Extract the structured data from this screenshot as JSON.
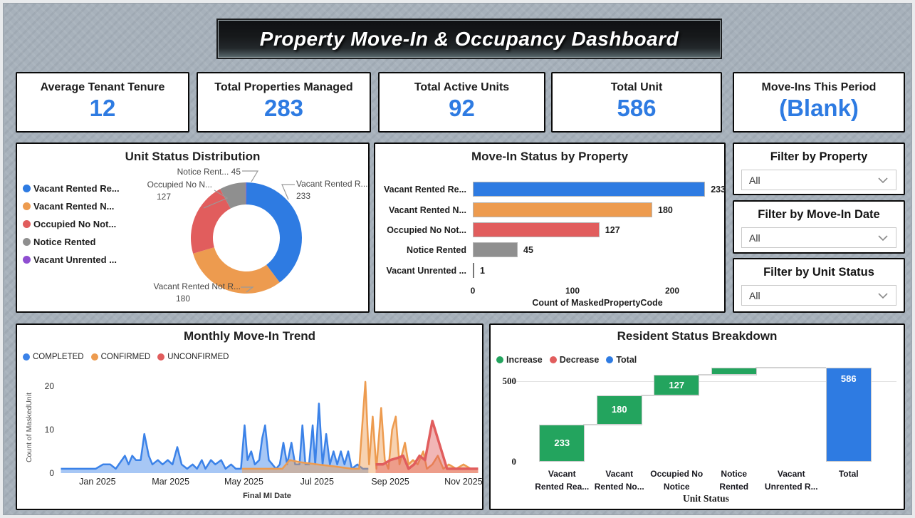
{
  "title": "Property Move-In & Occupancy Dashboard",
  "kpis": [
    {
      "label": "Average Tenant Tenure",
      "value": "12"
    },
    {
      "label": "Total Properties Managed",
      "value": "283"
    },
    {
      "label": "Total Active Units",
      "value": "92"
    },
    {
      "label": "Total Unit",
      "value": "586"
    },
    {
      "label": "Move-Ins This Period",
      "value": "(Blank)"
    }
  ],
  "filters": [
    {
      "title": "Filter by Property",
      "value": "All"
    },
    {
      "title": "Filter by Move-In Date",
      "value": "All"
    },
    {
      "title": "Filter by Unit Status",
      "value": "All"
    }
  ],
  "colors": {
    "blue": "#2e7be2",
    "orange": "#ed9b4f",
    "red": "#e15d5d",
    "gray": "#8f8f8f",
    "purple": "#8f4fd1",
    "green": "#23a45e",
    "kpi_value": "#2e7be2"
  },
  "chart_data": [
    {
      "type": "pie",
      "title": "Unit Status Distribution",
      "legend": [
        {
          "label": "Vacant Rented Re...",
          "color": "#2e7be2"
        },
        {
          "label": "Vacant Rented N...",
          "color": "#ed9b4f"
        },
        {
          "label": "Occupied No Not...",
          "color": "#e15d5d"
        },
        {
          "label": "Notice Rented",
          "color": "#8f8f8f"
        },
        {
          "label": "Vacant Unrented ...",
          "color": "#8f4fd1"
        }
      ],
      "values": [
        233,
        180,
        127,
        45,
        1
      ],
      "callouts": {
        "top": {
          "line1": "Notice Rent...  45"
        },
        "left": {
          "line1": "Occupied No N...",
          "line2": "127"
        },
        "right": {
          "line1": "Vacant Rented R...",
          "line2": "233"
        },
        "bottom": {
          "line1": "Vacant Rented Not R...",
          "line2": "180"
        }
      }
    },
    {
      "type": "bar",
      "title": "Move-In Status by Property",
      "categories": [
        "Vacant Rented Re...",
        "Vacant Rented N...",
        "Occupied No Not...",
        "Notice Rented",
        "Vacant Unrented ..."
      ],
      "values": [
        233,
        180,
        127,
        45,
        1
      ],
      "bar_colors": [
        "#2e7be2",
        "#ed9b4f",
        "#e15d5d",
        "#8f8f8f",
        "#777777"
      ],
      "xlabel": "Count of MaskedPropertyCode",
      "xticks": [
        0,
        100,
        200
      ],
      "xlim": [
        0,
        250
      ]
    },
    {
      "type": "area",
      "title": "Monthly Move-In Trend",
      "xlabel": "Final MI Date",
      "ylabel": "Count of MaskedUnit",
      "yticks": [
        0,
        10,
        20
      ],
      "ylim": [
        0,
        22
      ],
      "xlim": [
        0,
        11.5
      ],
      "xticks": [
        {
          "t": 1,
          "label": "Jan 2025"
        },
        {
          "t": 3,
          "label": "Mar 2025"
        },
        {
          "t": 5,
          "label": "May 2025"
        },
        {
          "t": 7,
          "label": "Jul 2025"
        },
        {
          "t": 9,
          "label": "Sep 2025"
        },
        {
          "t": 11,
          "label": "Nov 2025"
        }
      ],
      "series": [
        {
          "name": "COMPLETED",
          "color": "#3b82e8",
          "points": [
            [
              0,
              1
            ],
            [
              0.6,
              1
            ],
            [
              0.95,
              1
            ],
            [
              1.15,
              2
            ],
            [
              1.35,
              2
            ],
            [
              1.5,
              1
            ],
            [
              1.75,
              4
            ],
            [
              1.85,
              2
            ],
            [
              1.95,
              4
            ],
            [
              2.05,
              3
            ],
            [
              2.18,
              3
            ],
            [
              2.28,
              9
            ],
            [
              2.4,
              4
            ],
            [
              2.5,
              2
            ],
            [
              2.65,
              3
            ],
            [
              2.78,
              2
            ],
            [
              2.92,
              3
            ],
            [
              3.05,
              2
            ],
            [
              3.18,
              6
            ],
            [
              3.3,
              2
            ],
            [
              3.45,
              1
            ],
            [
              3.6,
              2
            ],
            [
              3.72,
              1
            ],
            [
              3.85,
              3
            ],
            [
              3.95,
              1
            ],
            [
              4.1,
              3
            ],
            [
              4.22,
              2
            ],
            [
              4.38,
              3
            ],
            [
              4.5,
              1
            ],
            [
              4.65,
              2
            ],
            [
              4.78,
              1
            ],
            [
              4.92,
              1
            ],
            [
              5.02,
              11
            ],
            [
              5.1,
              3
            ],
            [
              5.2,
              5
            ],
            [
              5.3,
              2
            ],
            [
              5.42,
              3
            ],
            [
              5.5,
              8
            ],
            [
              5.58,
              11
            ],
            [
              5.68,
              3
            ],
            [
              5.78,
              2
            ],
            [
              5.88,
              1
            ],
            [
              5.98,
              2
            ],
            [
              6.08,
              7
            ],
            [
              6.18,
              2
            ],
            [
              6.3,
              7
            ],
            [
              6.4,
              2
            ],
            [
              6.52,
              2
            ],
            [
              6.6,
              11
            ],
            [
              6.68,
              2
            ],
            [
              6.78,
              2
            ],
            [
              6.88,
              11
            ],
            [
              6.95,
              2
            ],
            [
              7.05,
              16
            ],
            [
              7.15,
              2
            ],
            [
              7.25,
              9
            ],
            [
              7.35,
              2
            ],
            [
              7.45,
              5
            ],
            [
              7.55,
              2
            ],
            [
              7.65,
              5
            ],
            [
              7.75,
              2
            ],
            [
              7.85,
              5
            ],
            [
              7.95,
              1
            ],
            [
              8.1,
              2
            ],
            [
              8.25,
              1
            ],
            [
              8.4,
              1
            ]
          ]
        },
        {
          "name": "CONFIRMED",
          "color": "#ed9b4f",
          "points": [
            [
              4.95,
              1
            ],
            [
              5.4,
              1
            ],
            [
              5.8,
              1
            ],
            [
              6.05,
              1
            ],
            [
              6.25,
              3
            ],
            [
              6.55,
              2.5
            ],
            [
              7.0,
              2
            ],
            [
              7.5,
              1.5
            ],
            [
              7.95,
              1
            ],
            [
              8.15,
              1
            ],
            [
              8.32,
              21
            ],
            [
              8.42,
              2
            ],
            [
              8.52,
              13
            ],
            [
              8.62,
              1
            ],
            [
              8.75,
              15
            ],
            [
              8.85,
              3
            ],
            [
              8.95,
              1
            ],
            [
              9.05,
              10
            ],
            [
              9.15,
              13
            ],
            [
              9.25,
              2
            ],
            [
              9.4,
              7
            ],
            [
              9.5,
              2
            ],
            [
              9.62,
              3
            ],
            [
              9.75,
              2
            ],
            [
              9.9,
              5
            ],
            [
              10.0,
              1
            ],
            [
              10.15,
              2
            ],
            [
              10.3,
              4
            ],
            [
              10.45,
              1
            ],
            [
              10.6,
              2
            ],
            [
              10.8,
              1
            ],
            [
              11.0,
              2
            ],
            [
              11.2,
              1
            ],
            [
              11.4,
              1
            ]
          ]
        },
        {
          "name": "UNCONFIRMED",
          "color": "#e15d5d",
          "points": [
            [
              8.6,
              2
            ],
            [
              8.8,
              2
            ],
            [
              9.0,
              3
            ],
            [
              9.2,
              3.5
            ],
            [
              9.35,
              4
            ],
            [
              9.5,
              1
            ],
            [
              9.65,
              2
            ],
            [
              9.8,
              4
            ],
            [
              9.95,
              3
            ],
            [
              10.15,
              12
            ],
            [
              10.55,
              1
            ],
            [
              10.75,
              1
            ],
            [
              11.0,
              1
            ],
            [
              11.2,
              1
            ],
            [
              11.4,
              1
            ]
          ]
        }
      ]
    },
    {
      "type": "waterfall",
      "title": "Resident Status Breakdown",
      "legend": [
        {
          "label": "Increase",
          "color": "#23a45e"
        },
        {
          "label": "Decrease",
          "color": "#e15d5d"
        },
        {
          "label": "Total",
          "color": "#2e7be2"
        }
      ],
      "categories": [
        [
          "Vacant",
          "Rented Rea..."
        ],
        [
          "Vacant",
          "Rented No..."
        ],
        [
          "Occupied No",
          "Notice"
        ],
        [
          "Notice",
          "Rented"
        ],
        [
          "Vacant",
          "Unrented R..."
        ],
        [
          "Total",
          ""
        ]
      ],
      "measures": [
        233,
        180,
        127,
        45,
        1
      ],
      "total": 586,
      "bar_labels": [
        "233",
        "180",
        "127",
        "",
        "",
        "586"
      ],
      "yticks": [
        0,
        500
      ],
      "ylim": [
        0,
        620
      ],
      "xlabel": "Unit Status"
    }
  ]
}
